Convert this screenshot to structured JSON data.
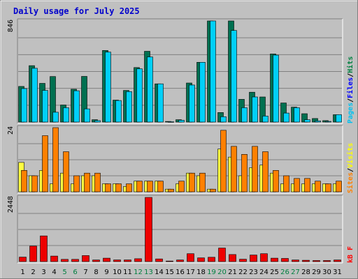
{
  "chart_data": {
    "type": "bar",
    "title": "Daily usage for July 2025",
    "days": [
      "1",
      "2",
      "3",
      "4",
      "5",
      "6",
      "7",
      "8",
      "9",
      "10",
      "11",
      "12",
      "13",
      "14",
      "15",
      "16",
      "17",
      "18",
      "19",
      "20",
      "21",
      "22",
      "23",
      "24",
      "25",
      "26",
      "27",
      "28",
      "29",
      "30",
      "31"
    ],
    "weekend_days": [
      "5",
      "6",
      "12",
      "13",
      "19",
      "20",
      "26",
      "27"
    ],
    "panels": [
      {
        "id": "hits-files-pages",
        "ymax": 846,
        "ymax_label": "846",
        "legend": [
          {
            "name": "Pages",
            "color": "#00c0f0"
          },
          {
            "name": "/",
            "color": "#000000"
          },
          {
            "name": "Files",
            "color": "#0000ff"
          },
          {
            "name": "/",
            "color": "#000000"
          },
          {
            "name": "Hits",
            "color": "#008040"
          }
        ],
        "series": [
          {
            "name": "Hits",
            "color": "#007050",
            "values": [
              298,
              472,
              324,
              381,
              143,
              275,
              382,
              20,
              599,
              184,
              265,
              456,
              592,
              320,
              5,
              20,
              327,
              500,
              846,
              80,
              846,
              190,
              250,
              210,
              570,
              160,
              125,
              70,
              30,
              12,
              62
            ]
          },
          {
            "name": "Files",
            "color": "#00d0f8",
            "values": [
              280,
              450,
              265,
              82,
              120,
              262,
              110,
              12,
              585,
              180,
              255,
              445,
              545,
              320,
              3,
              15,
              310,
              500,
              846,
              45,
              766,
              120,
              210,
              50,
              560,
              75,
              120,
              20,
              10,
              6,
              62
            ]
          }
        ]
      },
      {
        "id": "visits-sites",
        "ymax": 24,
        "ymax_label": "24",
        "legend": [
          {
            "name": "Sites",
            "color": "#ff8000"
          },
          {
            "name": "/",
            "color": "#000000"
          },
          {
            "name": "Visits",
            "color": "#ffff00"
          }
        ],
        "series": [
          {
            "name": "Visits",
            "color": "#ffff40",
            "values": [
              11,
              6,
              8,
              3,
              7,
              3,
              6,
              6,
              3,
              3,
              2,
              4,
              4,
              4,
              1,
              3,
              7,
              6,
              1,
              16,
              13,
              6,
              9,
              10,
              7,
              3,
              3,
              3,
              3,
              3,
              3
            ]
          },
          {
            "name": "Sites",
            "color": "#ff8000",
            "values": [
              8,
              6,
              21,
              24,
              15,
              6,
              7,
              7,
              3,
              3,
              3,
              4,
              4,
              4,
              1,
              4,
              7,
              7,
              1,
              23,
              17,
              14,
              17,
              15,
              8,
              6,
              5,
              5,
              4,
              3,
              4
            ]
          }
        ]
      },
      {
        "id": "kbytes",
        "ymax": 2448,
        "ymax_label": "2448",
        "legend": [
          {
            "name": "kB F",
            "color": "#ff0000"
          }
        ],
        "series": [
          {
            "name": "kB F",
            "color": "#ee0000",
            "values": [
              170,
              590,
              980,
              210,
              85,
              85,
              230,
              60,
              130,
              65,
              65,
              110,
              2448,
              100,
              20,
              60,
              300,
              140,
              165,
              515,
              270,
              90,
              250,
              300,
              130,
              120,
              60,
              50,
              40,
              40,
              60
            ]
          }
        ]
      }
    ]
  }
}
